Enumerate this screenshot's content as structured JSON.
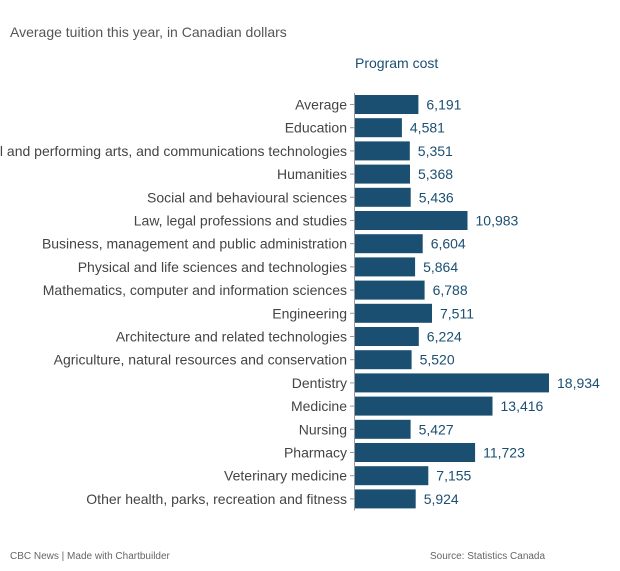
{
  "subtitle": "Average tuition this year, in Canadian dollars",
  "footer": {
    "credit": "CBC News | Made with Chartbuilder",
    "source": "Source: Statistics Canada"
  },
  "colors": {
    "bar": "#1b4f72",
    "value_text": "#1b4f72",
    "category_text": "#444444",
    "axis": "#999999"
  },
  "chart_data": {
    "type": "bar",
    "orientation": "horizontal",
    "title": "",
    "series_header": "Program cost",
    "categories": [
      "Average",
      "Education",
      "Visual and performing arts, and communications technologies",
      "Humanities",
      "Social and behavioural sciences",
      "Law, legal professions and studies",
      "Business, management and public administration",
      "Physical and life sciences and technologies",
      "Mathematics, computer and information sciences",
      "Engineering",
      "Architecture and related technologies",
      "Agriculture, natural resources and conservation",
      "Dentistry",
      "Medicine",
      "Nursing",
      "Pharmacy",
      "Veterinary medicine",
      "Other health, parks, recreation and fitness"
    ],
    "values": [
      6191,
      4581,
      5351,
      5368,
      5436,
      10983,
      6604,
      5864,
      6788,
      7511,
      6224,
      5520,
      18934,
      13416,
      5427,
      11723,
      7155,
      5924
    ],
    "value_labels": [
      "6,191",
      "4,581",
      "5,351",
      "5,368",
      "5,436",
      "10,983",
      "6,604",
      "5,864",
      "6,788",
      "7,511",
      "6,224",
      "5,520",
      "18,934",
      "13,416",
      "5,427",
      "11,723",
      "7,155",
      "5,924"
    ],
    "xlim": [
      0,
      18934
    ],
    "grid": false,
    "legend": "none"
  }
}
